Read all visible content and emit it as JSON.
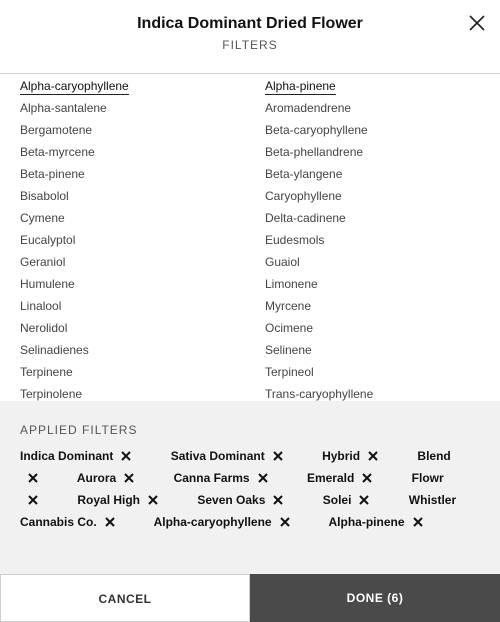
{
  "header": {
    "title": "Indica Dominant Dried Flower",
    "subtitle": "FILTERS",
    "close_icon": "close-icon"
  },
  "options": {
    "left": [
      {
        "label": "Alpha-caryophyllene",
        "selected": true
      },
      {
        "label": "Alpha-santalene",
        "selected": false
      },
      {
        "label": "Bergamotene",
        "selected": false
      },
      {
        "label": "Beta-myrcene",
        "selected": false
      },
      {
        "label": "Beta-pinene",
        "selected": false
      },
      {
        "label": "Bisabolol",
        "selected": false
      },
      {
        "label": "Cymene",
        "selected": false
      },
      {
        "label": "Eucalyptol",
        "selected": false
      },
      {
        "label": "Geraniol",
        "selected": false
      },
      {
        "label": "Humulene",
        "selected": false
      },
      {
        "label": "Linalool",
        "selected": false
      },
      {
        "label": "Nerolidol",
        "selected": false
      },
      {
        "label": "Selinadienes",
        "selected": false
      },
      {
        "label": "Terpinene",
        "selected": false
      },
      {
        "label": "Terpinolene",
        "selected": false
      }
    ],
    "right": [
      {
        "label": "Alpha-pinene",
        "selected": true
      },
      {
        "label": "Aromadendrene",
        "selected": false
      },
      {
        "label": "Beta-caryophyllene",
        "selected": false
      },
      {
        "label": "Beta-phellandrene",
        "selected": false
      },
      {
        "label": "Beta-ylangene",
        "selected": false
      },
      {
        "label": "Caryophyllene",
        "selected": false
      },
      {
        "label": "Delta-cadinene",
        "selected": false
      },
      {
        "label": "Eudesmols",
        "selected": false
      },
      {
        "label": "Guaiol",
        "selected": false
      },
      {
        "label": "Limonene",
        "selected": false
      },
      {
        "label": "Myrcene",
        "selected": false
      },
      {
        "label": "Ocimene",
        "selected": false
      },
      {
        "label": "Selinene",
        "selected": false
      },
      {
        "label": "Terpineol",
        "selected": false
      },
      {
        "label": "Trans-caryophyllene",
        "selected": false
      }
    ]
  },
  "applied": {
    "title": "APPLIED FILTERS",
    "chips": [
      "Indica Dominant",
      "Sativa Dominant",
      "Hybrid",
      "Blend",
      "Aurora",
      "Canna Farms",
      "Emerald",
      "Flowr",
      "Royal High",
      "Seven Oaks",
      "Solei",
      "Whistler Cannabis Co.",
      "Alpha-caryophyllene",
      "Alpha-pinene"
    ],
    "remove_icon": "remove-x-icon"
  },
  "footer": {
    "cancel_label": "CANCEL",
    "done_label": "DONE (6)"
  },
  "colors": {
    "done_bg": "#4a4a4a",
    "applied_bg": "#f1f1f1",
    "divider": "#cfcfcf"
  }
}
